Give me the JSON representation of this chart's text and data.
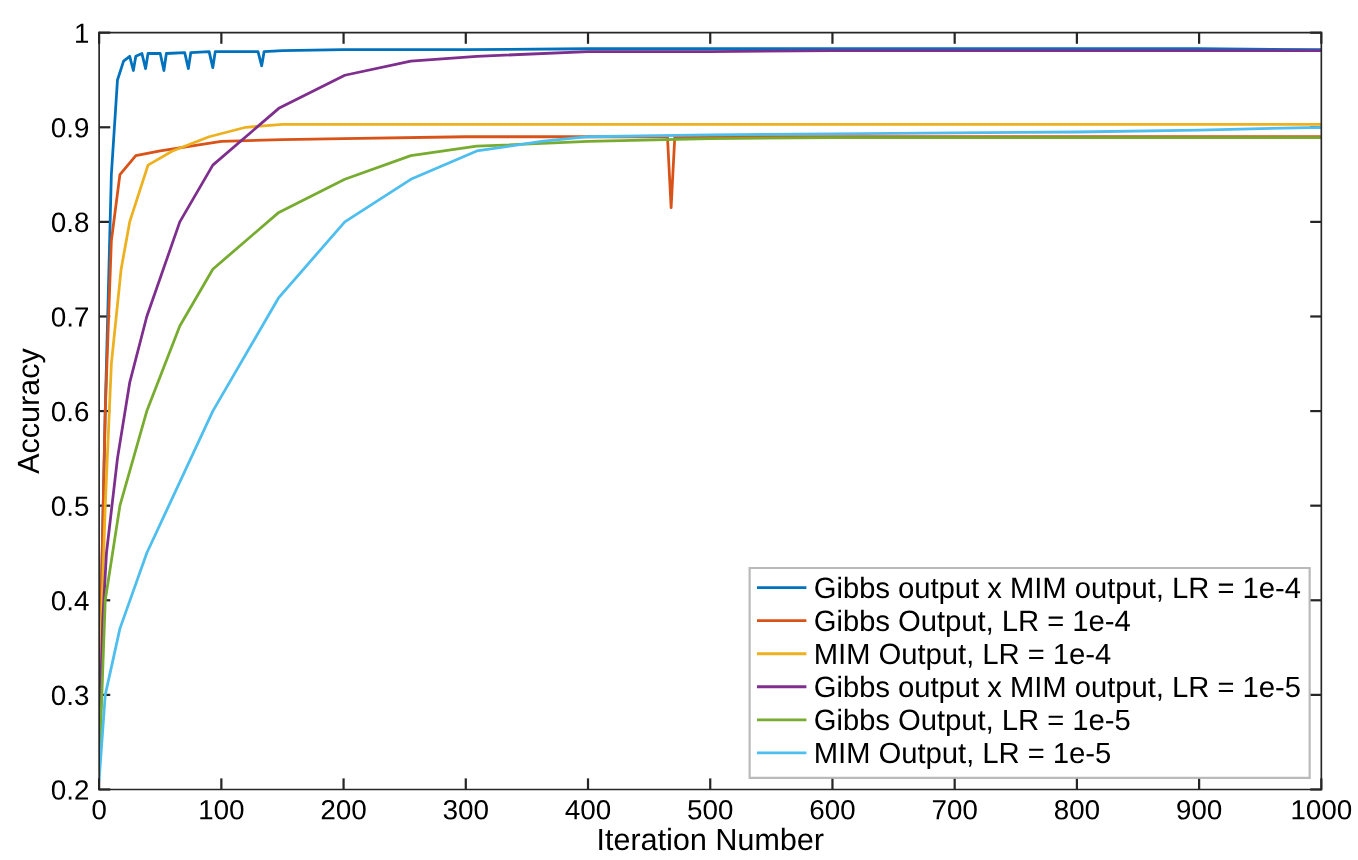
{
  "chart_data": {
    "type": "line",
    "xlabel": "Iteration Number",
    "ylabel": "Accuracy",
    "xlim": [
      0,
      1000
    ],
    "ylim": [
      0.2,
      1
    ],
    "xticks": [
      0,
      100,
      200,
      300,
      400,
      500,
      600,
      700,
      800,
      900,
      1000
    ],
    "yticks": [
      0.2,
      0.3,
      0.4,
      0.5,
      0.6,
      0.7,
      0.8,
      0.9,
      1
    ],
    "grid": false,
    "legend": "bottom right",
    "marker": "none",
    "line_style": "solid",
    "series": [
      {
        "name": "Gibbs output x MIM output, LR = 1e-4",
        "color": "#0072bd",
        "x": [
          0,
          5,
          10,
          15,
          20,
          25,
          28,
          30,
          35,
          38,
          40,
          50,
          53,
          55,
          70,
          73,
          75,
          90,
          93,
          95,
          130,
          133,
          135,
          150,
          200,
          250,
          300,
          400,
          500,
          600,
          700,
          800,
          900,
          1000
        ],
        "values": [
          0.3,
          0.6,
          0.85,
          0.95,
          0.97,
          0.975,
          0.96,
          0.975,
          0.978,
          0.962,
          0.978,
          0.978,
          0.96,
          0.978,
          0.979,
          0.962,
          0.979,
          0.98,
          0.963,
          0.98,
          0.98,
          0.965,
          0.98,
          0.981,
          0.982,
          0.982,
          0.982,
          0.983,
          0.983,
          0.983,
          0.983,
          0.983,
          0.983,
          0.982
        ]
      },
      {
        "name": "Gibbs Output, LR = 1e-4",
        "color": "#d95319",
        "x": [
          0,
          5,
          10,
          17,
          30,
          50,
          100,
          150,
          200,
          300,
          400,
          465,
          468,
          471,
          500,
          600,
          700,
          800,
          900,
          1000
        ],
        "values": [
          0.3,
          0.6,
          0.78,
          0.85,
          0.87,
          0.875,
          0.885,
          0.887,
          0.888,
          0.89,
          0.89,
          0.89,
          0.815,
          0.89,
          0.89,
          0.89,
          0.89,
          0.89,
          0.89,
          0.89
        ]
      },
      {
        "name": "MIM Output, LR = 1e-4",
        "color": "#edb120",
        "x": [
          0,
          5,
          10,
          18,
          25,
          40,
          60,
          90,
          120,
          150,
          200,
          300,
          400,
          500,
          600,
          700,
          800,
          900,
          1000
        ],
        "values": [
          0.3,
          0.5,
          0.65,
          0.75,
          0.8,
          0.86,
          0.875,
          0.89,
          0.9,
          0.903,
          0.903,
          0.903,
          0.903,
          0.903,
          0.903,
          0.903,
          0.903,
          0.903,
          0.903
        ]
      },
      {
        "name": "Gibbs output x MIM output, LR = 1e-5",
        "color": "#7e2f8e",
        "x": [
          0,
          3,
          6,
          15,
          25,
          39,
          66,
          93,
          120,
          147,
          201,
          255,
          309,
          400,
          500,
          600,
          700,
          800,
          900,
          1000
        ],
        "values": [
          0.25,
          0.38,
          0.45,
          0.55,
          0.63,
          0.7,
          0.8,
          0.86,
          0.89,
          0.92,
          0.955,
          0.97,
          0.975,
          0.98,
          0.98,
          0.981,
          0.981,
          0.981,
          0.981,
          0.981
        ]
      },
      {
        "name": "Gibbs Output, LR = 1e-5",
        "color": "#77ac30",
        "x": [
          0,
          5,
          17,
          39,
          66,
          93,
          147,
          201,
          255,
          309,
          400,
          500,
          600,
          700,
          800,
          900,
          1000
        ],
        "values": [
          0.22,
          0.4,
          0.5,
          0.6,
          0.69,
          0.75,
          0.81,
          0.845,
          0.87,
          0.88,
          0.885,
          0.888,
          0.889,
          0.889,
          0.889,
          0.889,
          0.889
        ]
      },
      {
        "name": "MIM Output, LR = 1e-5",
        "color": "#4dbeee",
        "x": [
          0,
          5,
          17,
          39,
          93,
          147,
          201,
          255,
          309,
          362,
          400,
          500,
          600,
          700,
          800,
          900,
          1000
        ],
        "values": [
          0.21,
          0.3,
          0.37,
          0.45,
          0.6,
          0.72,
          0.8,
          0.845,
          0.875,
          0.885,
          0.89,
          0.892,
          0.893,
          0.894,
          0.895,
          0.897,
          0.9
        ]
      }
    ]
  }
}
